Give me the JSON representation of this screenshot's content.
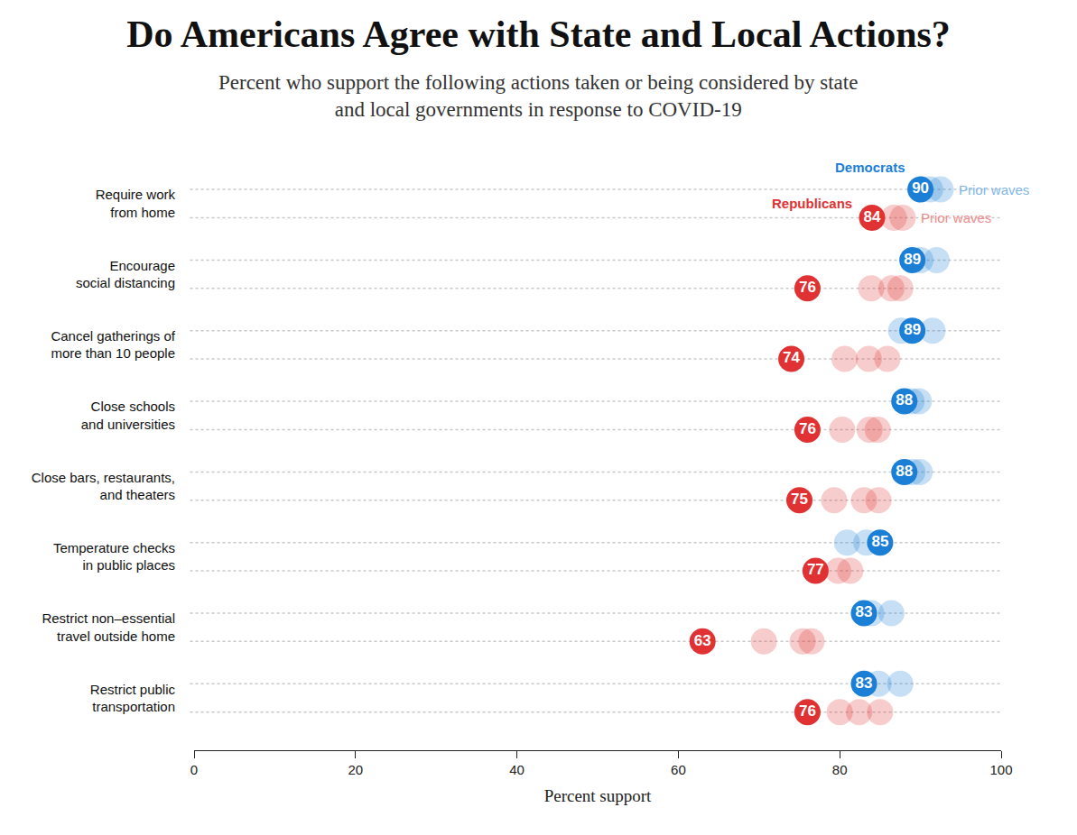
{
  "chart_data": {
    "type": "dot",
    "title": "Do Americans Agree with State and Local Actions?",
    "subtitle": "Percent who support the following actions taken or being considered by state\nand local governments in response to COVID-19",
    "x_label": "Percent support",
    "orientation": "horizontal",
    "data_labels": true,
    "xlim": [
      0,
      100
    ],
    "xticks": [
      0,
      20,
      40,
      60,
      80,
      100
    ],
    "categories": [
      "Require work\nfrom home",
      "Encourage\nsocial distancing",
      "Cancel gatherings of\nmore than 10 people",
      "Close schools\nand universities",
      "Close bars, restaurants,\nand theaters",
      "Temperature checks\nin public places",
      "Restrict non–essential\ntravel outside home",
      "Restrict public\ntransportation"
    ],
    "series": [
      {
        "name": "Democrats",
        "color": "#1b7fd6",
        "values": [
          90,
          89,
          89,
          88,
          88,
          85,
          83,
          83
        ],
        "prior_waves": {
          "name": "Prior waves",
          "color": "#7fb7e8",
          "values": [
            [
              91.2,
              92.5
            ],
            [
              90.0,
              92.0
            ],
            [
              87.6,
              91.5
            ],
            [
              88.9,
              89.8
            ],
            [
              89.0,
              89.9
            ],
            [
              80.9,
              83.3
            ],
            [
              83.9,
              86.4
            ],
            [
              84.8,
              87.5
            ]
          ]
        }
      },
      {
        "name": "Republicans",
        "color": "#e03232",
        "values": [
          84,
          76,
          74,
          76,
          75,
          77,
          63,
          76
        ],
        "prior_waves": {
          "name": "Prior waves",
          "color": "#f08c8c",
          "values": [
            [
              86.7,
              87.8
            ],
            [
              83.9,
              86.4,
              87.5
            ],
            [
              80.6,
              83.6,
              85.9
            ],
            [
              80.3,
              83.7,
              84.7
            ],
            [
              79.3,
              83.0,
              84.8
            ],
            [
              79.8,
              81.3
            ],
            [
              70.6,
              75.4,
              76.5
            ],
            [
              80.0,
              82.4,
              85.0
            ]
          ]
        }
      }
    ]
  }
}
